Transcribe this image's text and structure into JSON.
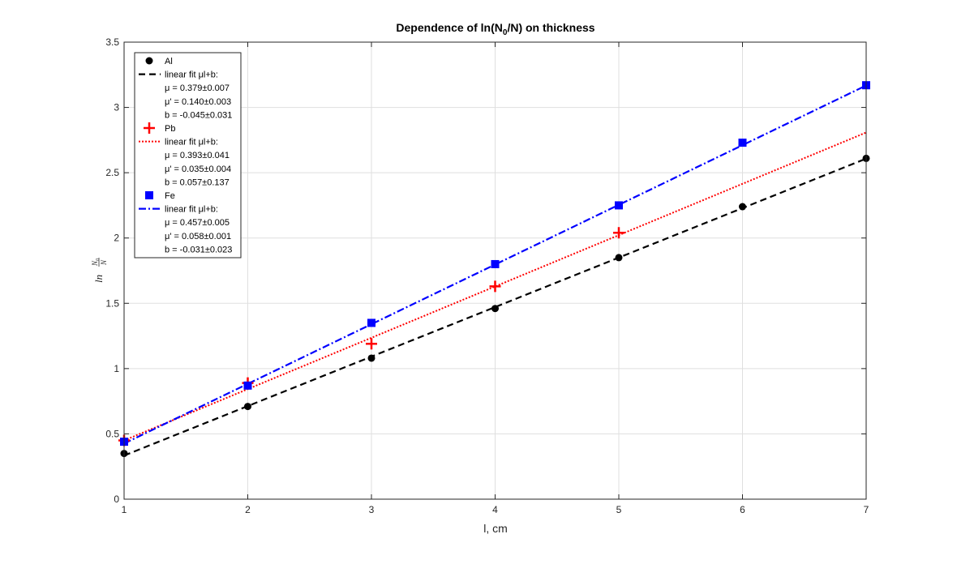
{
  "chart_data": {
    "type": "scatter",
    "title": "Dependence of ln(N0/N) on thickness",
    "xlabel": "l, cm",
    "ylabel": "ln N0/N",
    "xlim": [
      1,
      7
    ],
    "ylim": [
      0,
      3.5
    ],
    "xticks": [
      "1",
      "2",
      "3",
      "4",
      "5",
      "6",
      "7"
    ],
    "yticks": [
      "0",
      "0.5",
      "1",
      "1.5",
      "2",
      "2.5",
      "3",
      "3.5"
    ],
    "grid": true,
    "legend_position": "top-left",
    "series": [
      {
        "name": "Al",
        "marker": "circle",
        "color": "#000000",
        "x": [
          1,
          2,
          3,
          4,
          5,
          6,
          7
        ],
        "y": [
          0.35,
          0.71,
          1.08,
          1.46,
          1.85,
          2.24,
          2.61
        ]
      },
      {
        "name": "linear fit μl+b:",
        "style": "dashed",
        "color": "#000000",
        "fit": {
          "slope": 0.379,
          "intercept": -0.045,
          "x": [
            1,
            7
          ]
        },
        "params": [
          "μ = 0.379±0.007",
          "μ' = 0.140±0.003",
          "b = -0.045±0.031"
        ]
      },
      {
        "name": "Pb",
        "marker": "plus",
        "color": "#ff0000",
        "x": [
          1,
          2,
          3,
          4,
          5
        ],
        "y": [
          0.45,
          0.89,
          1.19,
          1.63,
          2.04
        ]
      },
      {
        "name": "linear fit μl+b:",
        "style": "dotted",
        "color": "#ff0000",
        "fit": {
          "slope": 0.393,
          "intercept": 0.057,
          "x": [
            1,
            7
          ]
        },
        "params": [
          "μ = 0.393±0.041",
          "μ' = 0.035±0.004",
          "b = 0.057±0.137"
        ]
      },
      {
        "name": "Fe",
        "marker": "square",
        "color": "#0000ff",
        "x": [
          1,
          2,
          3,
          4,
          5,
          6,
          7
        ],
        "y": [
          0.44,
          0.87,
          1.35,
          1.8,
          2.25,
          2.73,
          3.17
        ]
      },
      {
        "name": "linear fit μl+b:",
        "style": "dashdot",
        "color": "#0000ff",
        "fit": {
          "slope": 0.457,
          "intercept": -0.031,
          "x": [
            1,
            7
          ]
        },
        "params": [
          "μ = 0.457±0.005",
          "μ' = 0.058±0.001",
          "b = -0.031±0.023"
        ]
      }
    ]
  }
}
